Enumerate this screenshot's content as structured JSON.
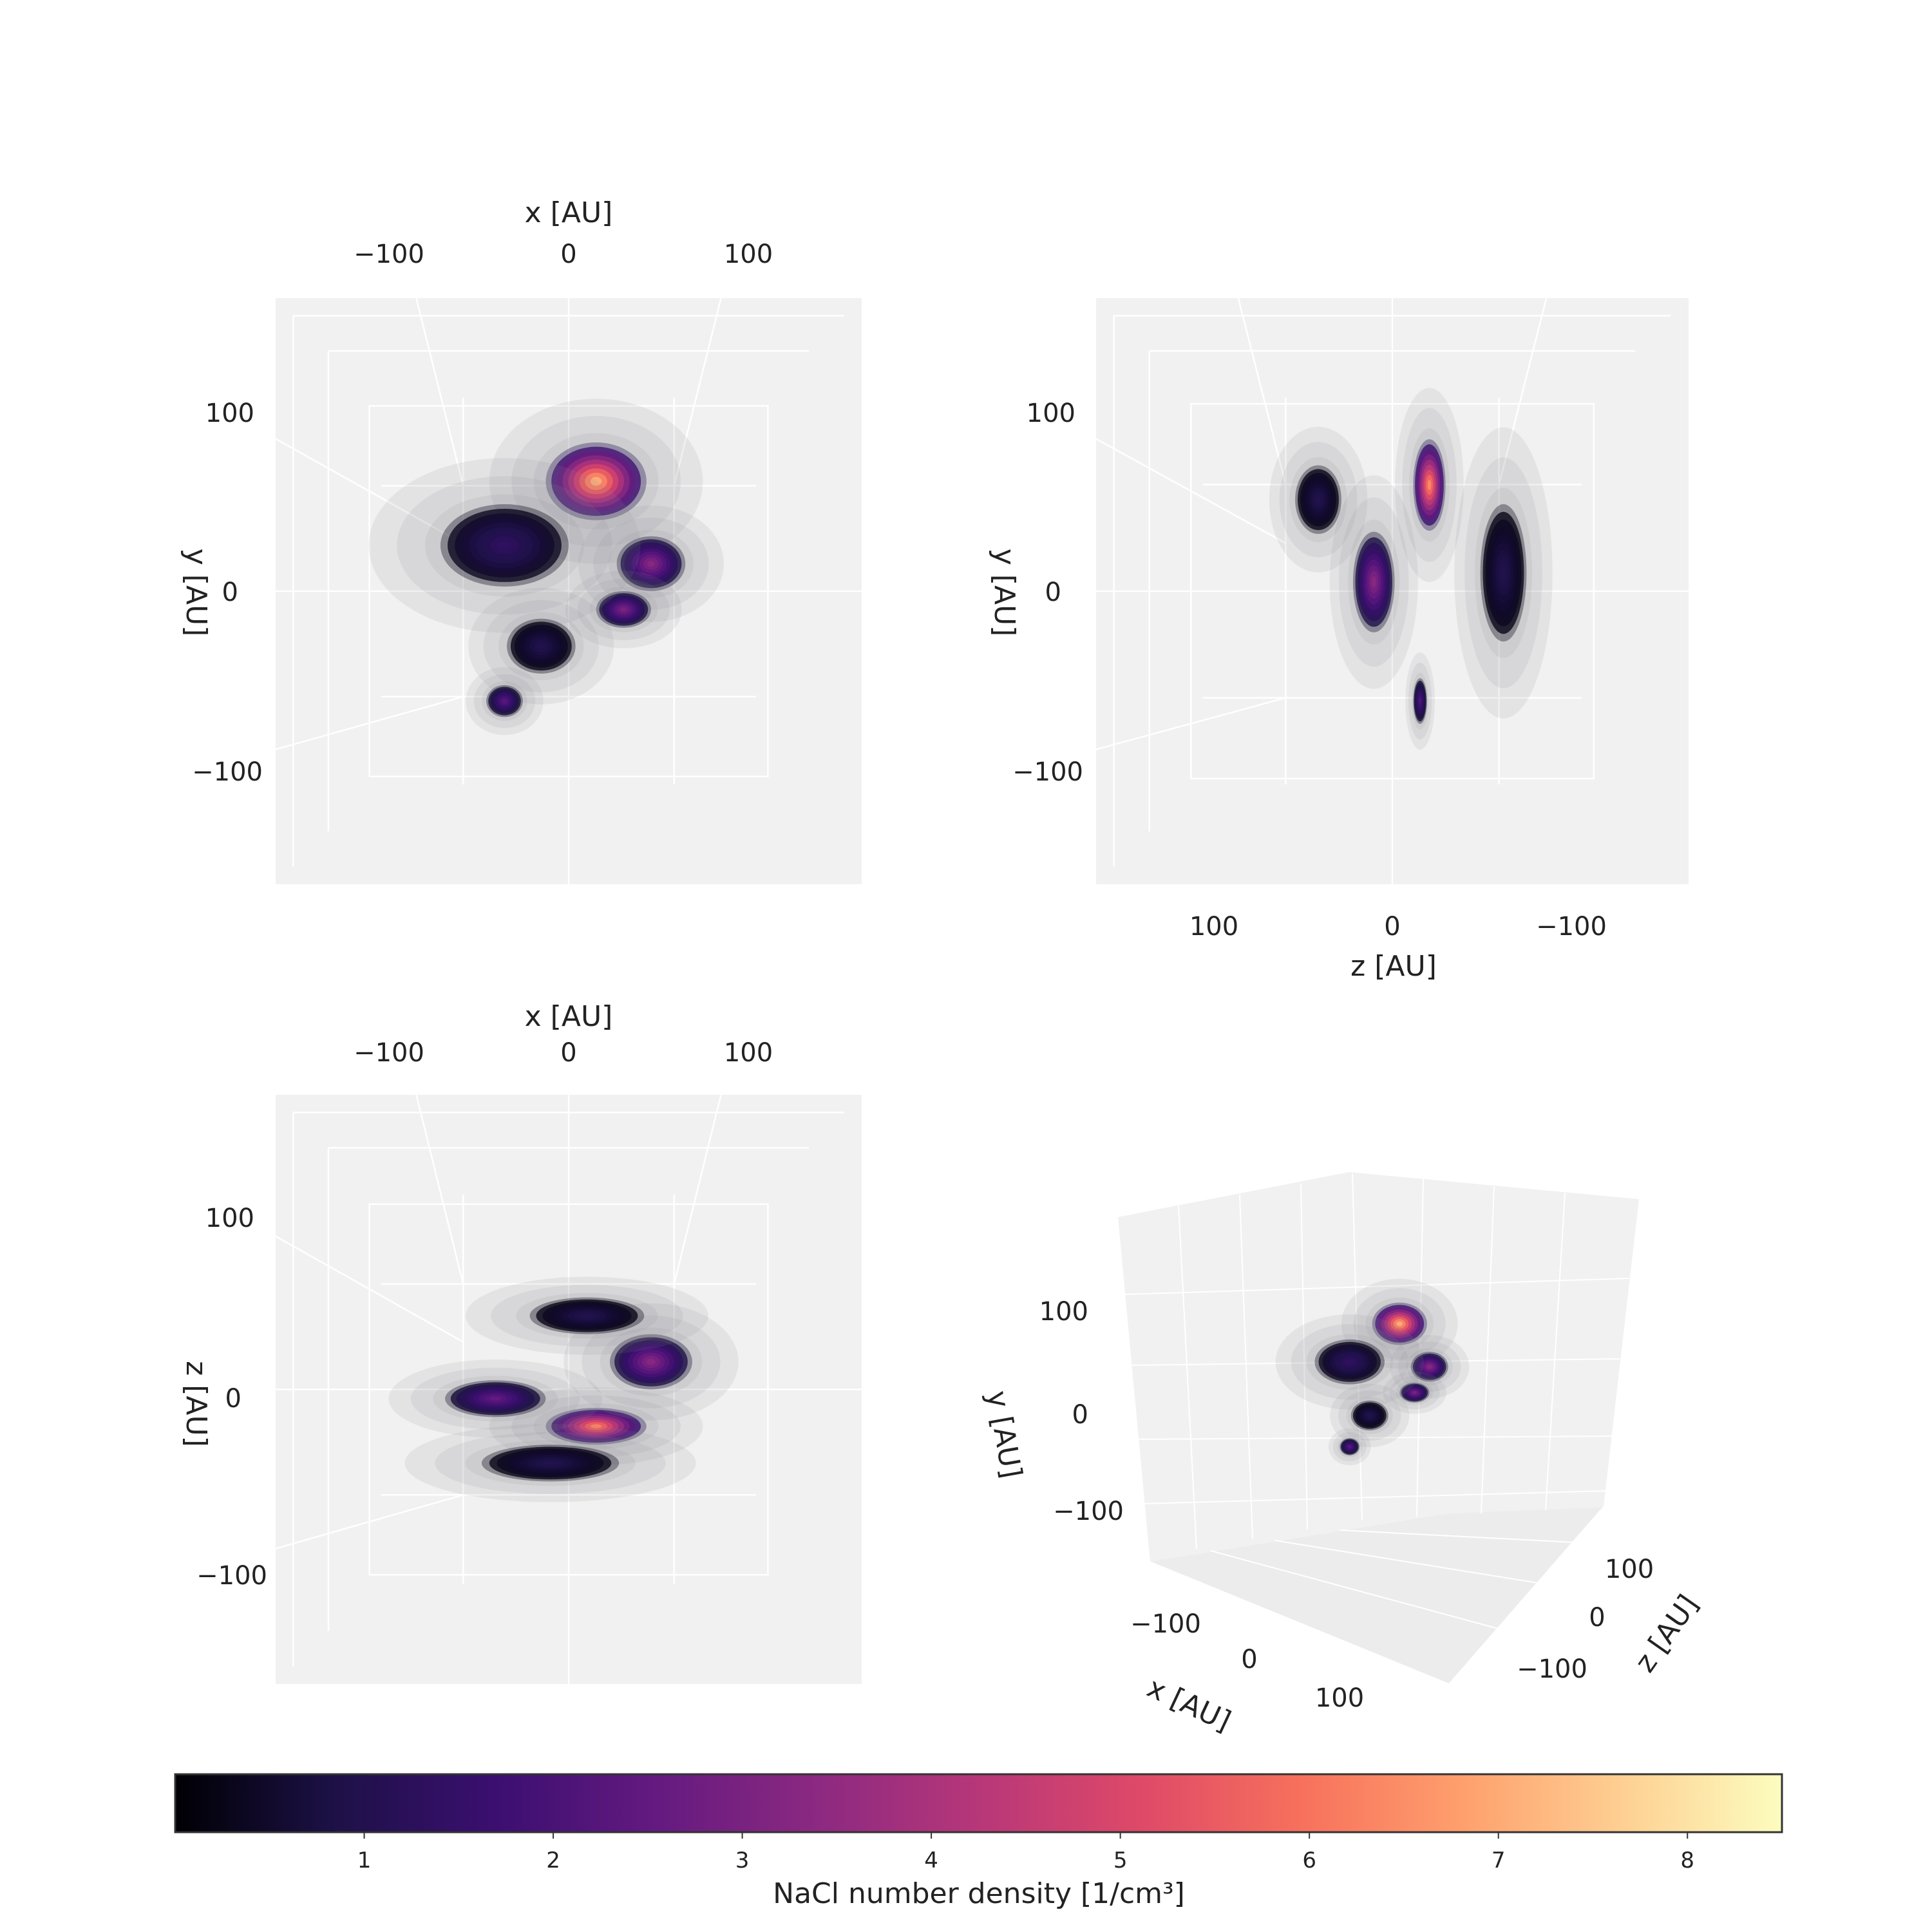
{
  "chart_data": {
    "type": "heatmap",
    "description_style": "3D density projections",
    "colormap": "magma",
    "colors": [
      "#000004",
      "#1d1147",
      "#3b0f70",
      "#641a80",
      "#8c2981",
      "#b73779",
      "#de4968",
      "#f7705c",
      "#fe9f6d",
      "#fecf92",
      "#fcfdbf"
    ],
    "panel_background": "#f1f1f1",
    "gridline_color": "#ffffff",
    "panels": [
      {
        "view": "xy",
        "xlabel": "x [AU]",
        "ylabel": "y [AU]",
        "xticks": [
          "−100",
          "0",
          "100"
        ],
        "yticks": [
          "100",
          "0",
          "−100"
        ],
        "xtick_values": [
          -100,
          0,
          100
        ],
        "ytick_values": [
          100,
          0,
          -100
        ],
        "xlim": [
          -160,
          160
        ],
        "ylim": [
          -160,
          160
        ],
        "blobs": [
          {
            "x": 15,
            "y": 60,
            "sx": 22,
            "sy": 17,
            "peak": 7.2
          },
          {
            "x": 45,
            "y": 15,
            "sx": 15,
            "sy": 12,
            "peak": 3.4
          },
          {
            "x": 30,
            "y": -10,
            "sx": 12,
            "sy": 8,
            "peak": 3.1
          },
          {
            "x": -35,
            "y": 25,
            "sx": 28,
            "sy": 18,
            "peak": 1.4
          },
          {
            "x": -15,
            "y": -30,
            "sx": 15,
            "sy": 12,
            "peak": 1.0
          },
          {
            "x": -35,
            "y": -60,
            "sx": 8,
            "sy": 7,
            "peak": 2.4
          }
        ]
      },
      {
        "view": "zy",
        "xlabel": "z [AU]",
        "ylabel": "y [AU]",
        "xticks": [
          "100",
          "0",
          "−100"
        ],
        "yticks": [
          "100",
          "0",
          "−100"
        ],
        "xtick_values": [
          100,
          0,
          -100
        ],
        "ytick_values": [
          100,
          0,
          -100
        ],
        "xlim": [
          160,
          -160
        ],
        "ylim": [
          -160,
          160
        ],
        "blobs": [
          {
            "x": -20,
            "y": 58,
            "sx": 7,
            "sy": 20,
            "peak": 6.6
          },
          {
            "x": 10,
            "y": 5,
            "sx": 9,
            "sy": 22,
            "peak": 3.4
          },
          {
            "x": -15,
            "y": -60,
            "sx": 3,
            "sy": 10,
            "peak": 2.2
          },
          {
            "x": 40,
            "y": 50,
            "sx": 10,
            "sy": 15,
            "peak": 1.0
          },
          {
            "x": -60,
            "y": 10,
            "sx": 10,
            "sy": 30,
            "peak": 1.0
          }
        ]
      },
      {
        "view": "xz",
        "xlabel": "x [AU]",
        "ylabel": "z [AU]",
        "xticks": [
          "−100",
          "0",
          "100"
        ],
        "yticks": [
          "100",
          "0",
          "−100"
        ],
        "xtick_values": [
          -100,
          0,
          100
        ],
        "ytick_values": [
          100,
          0,
          -100
        ],
        "xlim": [
          -160,
          160
        ],
        "ylim": [
          -160,
          160
        ],
        "blobs": [
          {
            "x": 15,
            "y": -20,
            "sx": 22,
            "sy": 8,
            "peak": 6.4
          },
          {
            "x": 45,
            "y": 15,
            "sx": 18,
            "sy": 12,
            "peak": 3.4
          },
          {
            "x": -40,
            "y": -5,
            "sx": 22,
            "sy": 8,
            "peak": 2.6
          },
          {
            "x": 10,
            "y": 40,
            "sx": 25,
            "sy": 8,
            "peak": 1.0
          },
          {
            "x": -10,
            "y": -40,
            "sx": 30,
            "sy": 8,
            "peak": 1.0
          }
        ]
      },
      {
        "view": "3d",
        "xlabel": "x [AU]",
        "ylabel": "y [AU]",
        "zlabel": "z [AU]",
        "xticks": [
          "−100",
          "0",
          "100"
        ],
        "yticks": [
          "100",
          "0",
          "−100"
        ],
        "zticks": [
          "100",
          "0",
          "−100"
        ]
      }
    ],
    "colorbar": {
      "label": "NaCl number density [1/cm³]",
      "ticks": [
        "1",
        "2",
        "3",
        "4",
        "5",
        "6",
        "7",
        "8"
      ],
      "tick_values": [
        1,
        2,
        3,
        4,
        5,
        6,
        7,
        8
      ],
      "range": [
        0,
        8.5
      ]
    }
  }
}
